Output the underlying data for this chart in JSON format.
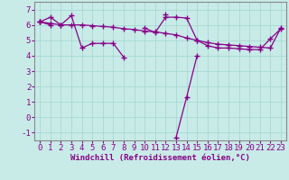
{
  "x_values": [
    0,
    1,
    2,
    3,
    4,
    5,
    6,
    7,
    8,
    9,
    10,
    11,
    12,
    13,
    14,
    15,
    16,
    17,
    18,
    19,
    20,
    21,
    22,
    23
  ],
  "line1_y": [
    6.2,
    6.5,
    6.0,
    6.6,
    4.5,
    4.8,
    4.8,
    4.8,
    3.9,
    null,
    null,
    null,
    6.7,
    null,
    null,
    null,
    null,
    null,
    null,
    null,
    null,
    null,
    null,
    null
  ],
  "line2_y": [
    6.2,
    6.1,
    6.0,
    6.0,
    6.0,
    5.95,
    5.9,
    5.85,
    5.75,
    5.7,
    5.6,
    5.55,
    5.45,
    5.35,
    5.15,
    5.0,
    4.85,
    4.75,
    4.7,
    4.65,
    4.6,
    4.55,
    4.5,
    5.8
  ],
  "line3_y": [
    6.2,
    6.0,
    null,
    null,
    null,
    null,
    null,
    null,
    null,
    null,
    5.8,
    5.5,
    6.5,
    6.5,
    6.45,
    5.0,
    4.65,
    4.5,
    4.5,
    4.45,
    4.4,
    4.4,
    5.1,
    5.75
  ],
  "line4_y": [
    null,
    null,
    null,
    null,
    null,
    null,
    null,
    null,
    null,
    null,
    null,
    null,
    null,
    -1.3,
    1.3,
    4.0,
    null,
    null,
    null,
    null,
    null,
    null,
    null,
    null
  ],
  "background_color": "#c8ebe8",
  "grid_color": "#a8d8d4",
  "line_color": "#880088",
  "xlabel": "Windchill (Refroidissement éolien,°C)",
  "xlim": [
    -0.5,
    23.5
  ],
  "ylim": [
    -1.5,
    7.5
  ],
  "xticks": [
    0,
    1,
    2,
    3,
    4,
    5,
    6,
    7,
    8,
    9,
    10,
    11,
    12,
    13,
    14,
    15,
    16,
    17,
    18,
    19,
    20,
    21,
    22,
    23
  ],
  "yticks": [
    -1,
    0,
    1,
    2,
    3,
    4,
    5,
    6,
    7
  ],
  "marker": "+",
  "markersize": 4,
  "linewidth": 0.9,
  "xlabel_fontsize": 6.5,
  "tick_fontsize": 6.5,
  "fig_width": 3.2,
  "fig_height": 2.0,
  "dpi": 100
}
